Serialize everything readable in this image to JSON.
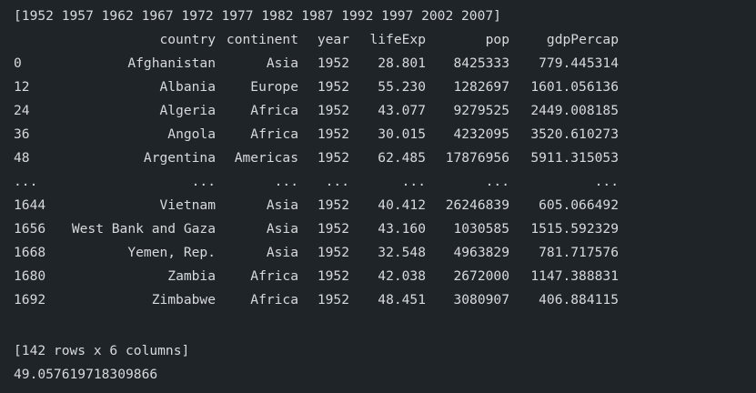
{
  "years_line": "[1952 1957 1962 1967 1972 1977 1982 1987 1992 1997 2002 2007]",
  "table": {
    "columns": [
      "",
      "country",
      "continent",
      "year",
      "lifeExp",
      "pop",
      "gdpPercap"
    ],
    "rows": [
      [
        "0",
        "Afghanistan",
        "Asia",
        "1952",
        "28.801",
        "8425333",
        "779.445314"
      ],
      [
        "12",
        "Albania",
        "Europe",
        "1952",
        "55.230",
        "1282697",
        "1601.056136"
      ],
      [
        "24",
        "Algeria",
        "Africa",
        "1952",
        "43.077",
        "9279525",
        "2449.008185"
      ],
      [
        "36",
        "Angola",
        "Africa",
        "1952",
        "30.015",
        "4232095",
        "3520.610273"
      ],
      [
        "48",
        "Argentina",
        "Americas",
        "1952",
        "62.485",
        "17876956",
        "5911.315053"
      ],
      [
        "...",
        "...",
        "...",
        "...",
        "...",
        "...",
        "..."
      ],
      [
        "1644",
        "Vietnam",
        "Asia",
        "1952",
        "40.412",
        "26246839",
        "605.066492"
      ],
      [
        "1656",
        "West Bank and Gaza",
        "Asia",
        "1952",
        "43.160",
        "1030585",
        "1515.592329"
      ],
      [
        "1668",
        "Yemen, Rep.",
        "Asia",
        "1952",
        "32.548",
        "4963829",
        "781.717576"
      ],
      [
        "1680",
        "Zambia",
        "Africa",
        "1952",
        "42.038",
        "2672000",
        "1147.388831"
      ],
      [
        "1692",
        "Zimbabwe",
        "Africa",
        "1952",
        "48.451",
        "3080907",
        "406.884115"
      ]
    ]
  },
  "shape_line": "[142 rows x 6 columns]",
  "result_line": "49.057619718309866"
}
